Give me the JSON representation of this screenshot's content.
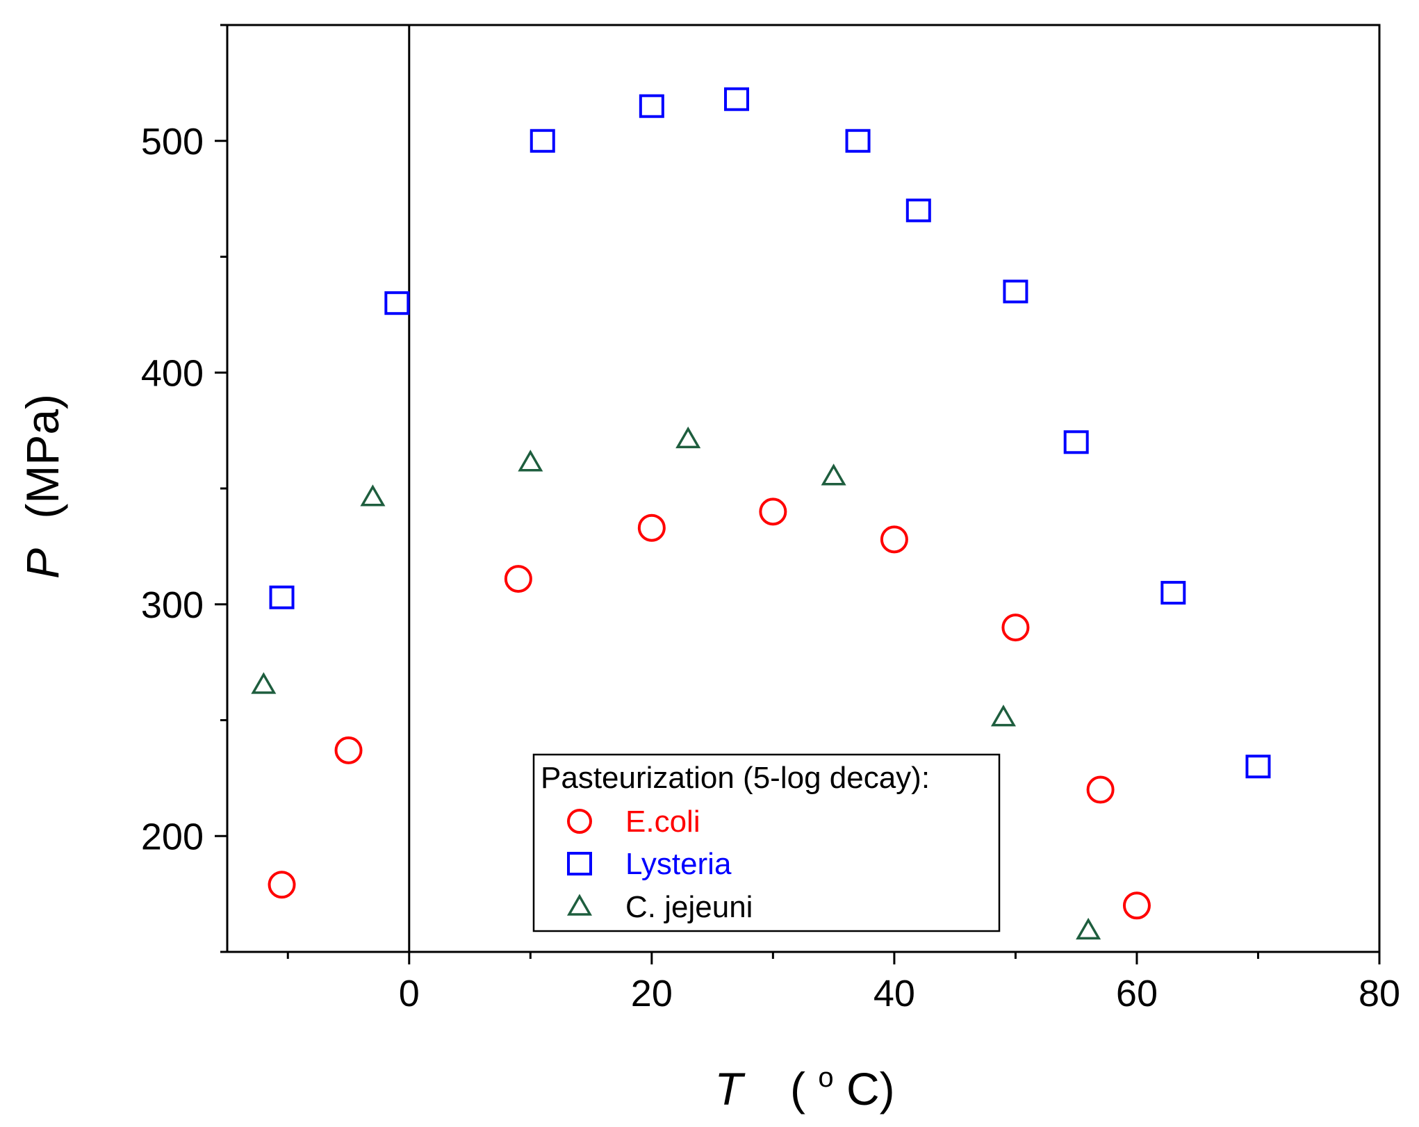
{
  "chart_data": {
    "type": "scatter",
    "title": "",
    "xlabel": {
      "symbol": "T",
      "unit_prefix": "(",
      "unit_sup": "o",
      "unit_rest": "C)"
    },
    "ylabel": {
      "symbol": "P",
      "unit": "(MPa)"
    },
    "xlim": [
      -15,
      80
    ],
    "ylim": [
      150,
      550
    ],
    "x_ticks": [
      0,
      20,
      40,
      60,
      80
    ],
    "x_tick_labels": [
      "0",
      "20",
      "40",
      "60",
      "80"
    ],
    "x_minor_ticks": [
      -10,
      10,
      30,
      50,
      70
    ],
    "y_ticks": [
      200,
      300,
      400,
      500
    ],
    "y_tick_labels": [
      "200",
      "300",
      "400",
      "500"
    ],
    "y_minor_ticks": [
      150,
      250,
      350,
      450,
      550
    ],
    "vertical_reference_line_x": 0,
    "legend": {
      "title": "Pasteurization (5-log decay):",
      "location": "bottom-center"
    },
    "series": [
      {
        "name": "E.coli",
        "marker": "circle",
        "color": "#ff0000",
        "points": [
          [
            -10.5,
            179
          ],
          [
            -5,
            237
          ],
          [
            9,
            311
          ],
          [
            20,
            333
          ],
          [
            30,
            340
          ],
          [
            40,
            328
          ],
          [
            50,
            290
          ],
          [
            57,
            220
          ],
          [
            60,
            170
          ]
        ]
      },
      {
        "name": "Lysteria",
        "marker": "square",
        "color": "#0000ff",
        "points": [
          [
            -10.5,
            303
          ],
          [
            -1,
            430
          ],
          [
            11,
            500
          ],
          [
            20,
            515
          ],
          [
            27,
            518
          ],
          [
            37,
            500
          ],
          [
            42,
            470
          ],
          [
            50,
            435
          ],
          [
            55,
            370
          ],
          [
            63,
            305
          ],
          [
            70,
            230
          ]
        ]
      },
      {
        "name": "C. jejeuni",
        "marker": "triangle",
        "color": "#1e5e3e",
        "points": [
          [
            -12,
            265
          ],
          [
            -3,
            346
          ],
          [
            10,
            361
          ],
          [
            23,
            371
          ],
          [
            35,
            355
          ],
          [
            49,
            251
          ],
          [
            56,
            159
          ]
        ]
      }
    ]
  }
}
